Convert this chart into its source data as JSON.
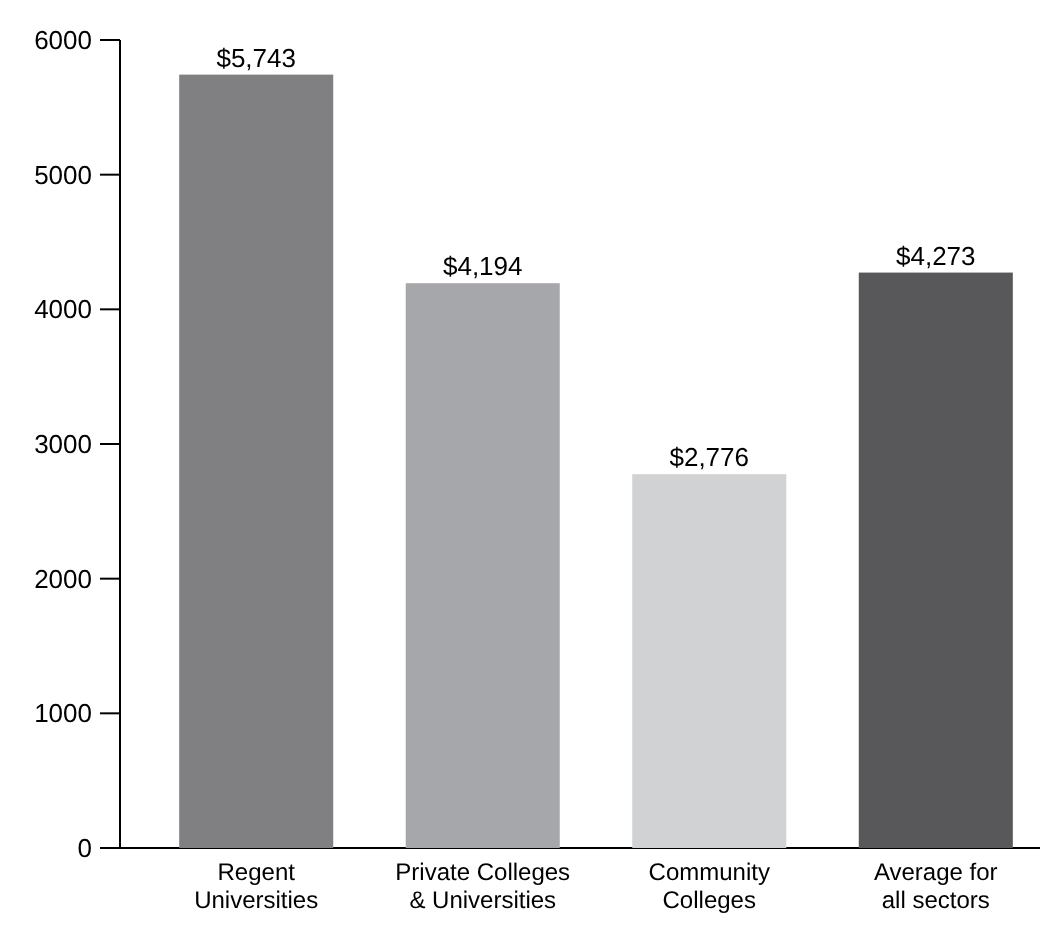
{
  "chart_data": {
    "type": "bar",
    "categories": [
      "Regent\nUniversities",
      "Private Colleges\n& Universities",
      "Community\nColleges",
      "Average for\nall sectors"
    ],
    "values": [
      5743,
      4194,
      2776,
      4273
    ],
    "colors": [
      "#808083",
      "#a6a7aa",
      "#d1d2d4",
      "#58585a"
    ],
    "value_labels": [
      "$5,743",
      "$4,194",
      "$2,776",
      "$4,273"
    ],
    "ylim": [
      0,
      6000
    ],
    "yticks": [
      0,
      1000,
      2000,
      3000,
      4000,
      5000,
      6000
    ],
    "grid": false
  }
}
